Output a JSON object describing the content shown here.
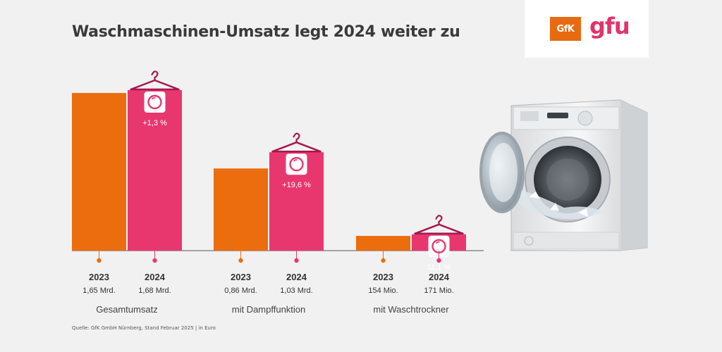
{
  "title": "Waschmaschinen-Umsatz legt 2024 weiter zu",
  "logos": {
    "gfk": "GfK",
    "gfu": "gfu"
  },
  "source": "Quelle: GfK GmbH Nürnberg, Stand Februar 2025 | in Euro",
  "colors": {
    "y2023": "#ec6d0e",
    "y2024": "#e8376f",
    "hanger": "#a3194f",
    "axis": "#555555"
  },
  "chart_data": {
    "type": "bar",
    "title": "Waschmaschinen-Umsatz legt 2024 weiter zu",
    "unit": "in Euro",
    "groups": [
      {
        "category": "Gesamtumsatz",
        "label_2023": "1,65 Mrd.",
        "label_2024": "1,68 Mrd.",
        "value_2023": 1650000000,
        "value_2024": 1680000000,
        "change": "+1,3 %"
      },
      {
        "category": "mit Dampffunktion",
        "label_2023": "0,86 Mrd.",
        "label_2024": "1,03 Mrd.",
        "value_2023": 860000000,
        "value_2024": 1030000000,
        "change": "+19,6 %"
      },
      {
        "category": "mit Waschtrockner",
        "label_2023": "154 Mio.",
        "label_2024": "171 Mio.",
        "value_2023": 154000000,
        "value_2024": 171000000,
        "change": "11,1 %"
      }
    ],
    "years": [
      "2023",
      "2024"
    ],
    "legend": "none",
    "grid": false
  }
}
